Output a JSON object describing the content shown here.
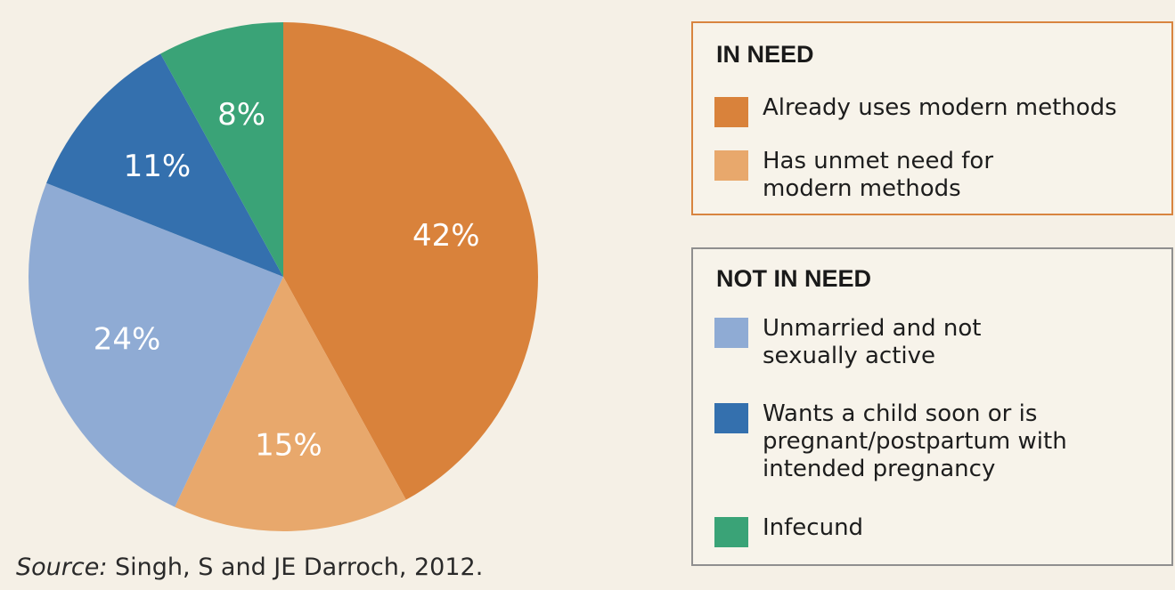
{
  "chart_data": {
    "type": "pie",
    "slices": [
      {
        "label": "Already uses modern methods",
        "display": "42%",
        "value": 42,
        "color": "#d9823b"
      },
      {
        "label": "Has unmet need for modern methods",
        "display": "15%",
        "value": 15,
        "color": "#e8a86c"
      },
      {
        "label": "Unmarried and not sexually active",
        "display": "24%",
        "value": 24,
        "color": "#8fabd4"
      },
      {
        "label": "Wants a child soon or is pregnant/postpartum with intended pregnancy",
        "display": "11%",
        "value": 11,
        "color": "#3470ae"
      },
      {
        "label": "Infecund",
        "display": "8%",
        "value": 8,
        "color": "#3aa377"
      }
    ],
    "legend": {
      "groups": [
        {
          "title": "IN NEED",
          "items": [
            0,
            1
          ]
        },
        {
          "title": "NOT IN NEED",
          "items": [
            2,
            3,
            4
          ]
        }
      ]
    }
  },
  "source": {
    "prefix": "Source:",
    "text": " Singh, S and JE Darroch, 2012."
  }
}
